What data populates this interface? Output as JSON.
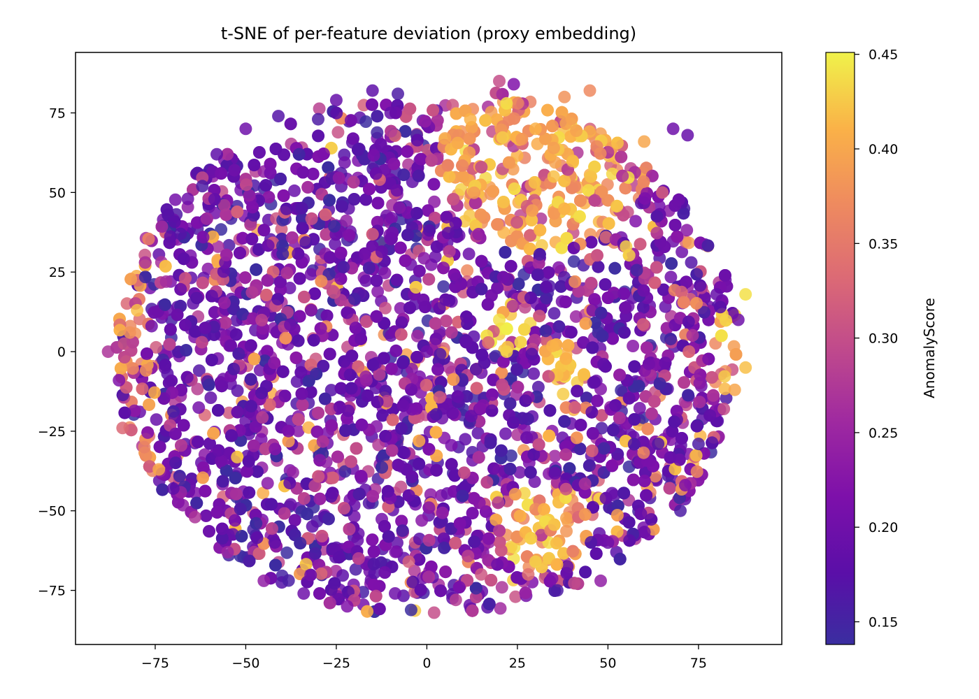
{
  "chart_data": {
    "type": "scatter",
    "title": "t-SNE of per-feature deviation (proxy embedding)",
    "xlabel": "",
    "ylabel": "",
    "xlim": [
      -97,
      98
    ],
    "ylim": [
      -92,
      94
    ],
    "x_ticks": [
      -75,
      -50,
      -25,
      0,
      25,
      50,
      75
    ],
    "y_ticks": [
      -75,
      -50,
      -25,
      0,
      25,
      50,
      75
    ],
    "x_tick_labels": [
      "−75",
      "−50",
      "−25",
      "0",
      "25",
      "50",
      "75"
    ],
    "y_tick_labels": [
      "−75",
      "−50",
      "−25",
      "0",
      "25",
      "50",
      "75"
    ],
    "grid": false,
    "colorbar": {
      "label": "AnomalyScore",
      "colormap": "plasma",
      "range": [
        0.138,
        0.451
      ],
      "ticks": [
        0.15,
        0.2,
        0.25,
        0.3,
        0.35,
        0.4,
        0.45
      ],
      "tick_labels": [
        "0.15",
        "0.20",
        "0.25",
        "0.30",
        "0.35",
        "0.40",
        "0.45"
      ]
    },
    "point_count_note": "approx. 6000 points, roughly circular cloud of radius ~85 centred near (0,0)",
    "points": [
      {
        "x": -88,
        "y": 0,
        "score": 0.27
      },
      {
        "x": -85,
        "y": -9,
        "score": 0.22
      },
      {
        "x": -84,
        "y": -24,
        "score": 0.33
      },
      {
        "x": -82,
        "y": 6,
        "score": 0.38
      },
      {
        "x": -80,
        "y": 13,
        "score": 0.42
      },
      {
        "x": -78,
        "y": -30,
        "score": 0.36
      },
      {
        "x": -76,
        "y": 8,
        "score": 0.2
      },
      {
        "x": -74,
        "y": -37,
        "score": 0.4
      },
      {
        "x": -72,
        "y": 22,
        "score": 0.26
      },
      {
        "x": -70,
        "y": -43,
        "score": 0.18
      },
      {
        "x": -68,
        "y": 37,
        "score": 0.17
      },
      {
        "x": -66,
        "y": 48,
        "score": 0.2
      },
      {
        "x": -64,
        "y": -52,
        "score": 0.27
      },
      {
        "x": -62,
        "y": 52,
        "score": 0.16
      },
      {
        "x": -58,
        "y": 62,
        "score": 0.18
      },
      {
        "x": -55,
        "y": -63,
        "score": 0.25
      },
      {
        "x": -50,
        "y": 70,
        "score": 0.2
      },
      {
        "x": -45,
        "y": -72,
        "score": 0.24
      },
      {
        "x": -41,
        "y": 74,
        "score": 0.17
      },
      {
        "x": -34,
        "y": -76,
        "score": 0.2
      },
      {
        "x": -30,
        "y": 73,
        "score": 0.16
      },
      {
        "x": -25,
        "y": 79,
        "score": 0.19
      },
      {
        "x": -22,
        "y": -80,
        "score": 0.22
      },
      {
        "x": -15,
        "y": 82,
        "score": 0.18
      },
      {
        "x": -10,
        "y": 75,
        "score": 0.19
      },
      {
        "x": -8,
        "y": 81,
        "score": 0.16
      },
      {
        "x": -5,
        "y": -66,
        "score": 0.32
      },
      {
        "x": 2,
        "y": -82,
        "score": 0.3
      },
      {
        "x": 5,
        "y": 67,
        "score": 0.4
      },
      {
        "x": 8,
        "y": -78,
        "score": 0.28
      },
      {
        "x": 12,
        "y": 73,
        "score": 0.41
      },
      {
        "x": 15,
        "y": -70,
        "score": 0.31
      },
      {
        "x": 20,
        "y": 85,
        "score": 0.3
      },
      {
        "x": 22,
        "y": 78,
        "score": 0.44
      },
      {
        "x": 24,
        "y": 84,
        "score": 0.22
      },
      {
        "x": 28,
        "y": -70,
        "score": 0.34
      },
      {
        "x": 30,
        "y": -66,
        "score": 0.43
      },
      {
        "x": 36,
        "y": -75,
        "score": 0.16
      },
      {
        "x": 38,
        "y": 80,
        "score": 0.38
      },
      {
        "x": 45,
        "y": 82,
        "score": 0.37
      },
      {
        "x": 48,
        "y": -72,
        "score": 0.24
      },
      {
        "x": 50,
        "y": -60,
        "score": 0.2
      },
      {
        "x": 55,
        "y": 33,
        "score": 0.43
      },
      {
        "x": 60,
        "y": 66,
        "score": 0.4
      },
      {
        "x": 65,
        "y": 50,
        "score": 0.32
      },
      {
        "x": 68,
        "y": 70,
        "score": 0.2
      },
      {
        "x": 72,
        "y": 68,
        "score": 0.19
      },
      {
        "x": 70,
        "y": -50,
        "score": 0.16
      },
      {
        "x": 75,
        "y": -29,
        "score": 0.16
      },
      {
        "x": 73,
        "y": 28,
        "score": 0.17
      },
      {
        "x": 80,
        "y": 18,
        "score": 0.19
      },
      {
        "x": 86,
        "y": 10,
        "score": 0.2
      },
      {
        "x": 88,
        "y": 18,
        "score": 0.44
      },
      {
        "x": 88,
        "y": -5,
        "score": 0.42
      },
      {
        "x": 85,
        "y": -12,
        "score": 0.4
      },
      {
        "x": 82,
        "y": -18,
        "score": 0.3
      },
      {
        "x": 0,
        "y": 0,
        "score": 0.2
      },
      {
        "x": 20,
        "y": 10,
        "score": 0.44
      },
      {
        "x": 22,
        "y": 0,
        "score": 0.43
      },
      {
        "x": 35,
        "y": 55,
        "score": 0.42
      },
      {
        "x": 30,
        "y": 70,
        "score": 0.41
      }
    ]
  }
}
